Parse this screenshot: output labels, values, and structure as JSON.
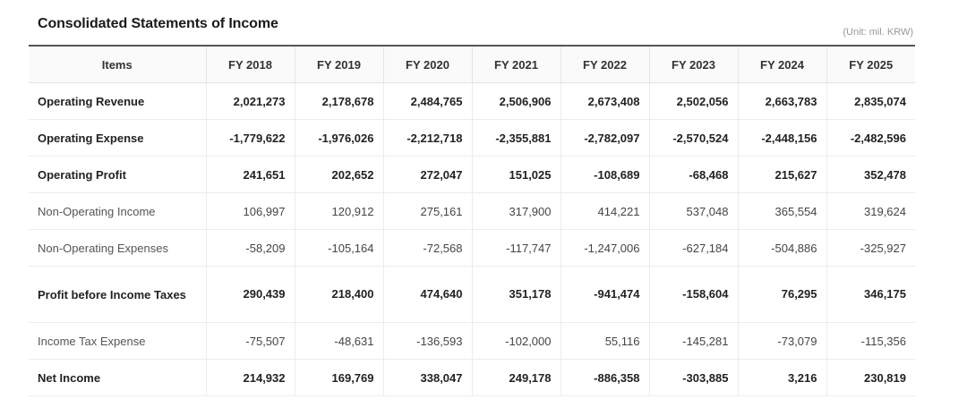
{
  "header": {
    "title": "Consolidated Statements of Income",
    "unit": "(Unit: mil. KRW)"
  },
  "table": {
    "columns": [
      "Items",
      "FY 2018",
      "FY 2019",
      "FY 2020",
      "FY 2021",
      "FY 2022",
      "FY 2023",
      "FY 2024",
      "FY 2025"
    ],
    "rows": [
      {
        "label": "Operating Revenue",
        "bold": true,
        "values": [
          "2,021,273",
          "2,178,678",
          "2,484,765",
          "2,506,906",
          "2,673,408",
          "2,502,056",
          "2,663,783",
          "2,835,074"
        ]
      },
      {
        "label": "Operating Expense",
        "bold": true,
        "values": [
          "-1,779,622",
          "-1,976,026",
          "-2,212,718",
          "-2,355,881",
          "-2,782,097",
          "-2,570,524",
          "-2,448,156",
          "-2,482,596"
        ]
      },
      {
        "label": "Operating Profit",
        "bold": true,
        "values": [
          "241,651",
          "202,652",
          "272,047",
          "151,025",
          "-108,689",
          "-68,468",
          "215,627",
          "352,478"
        ]
      },
      {
        "label": "Non-Operating Income",
        "bold": false,
        "values": [
          "106,997",
          "120,912",
          "275,161",
          "317,900",
          "414,221",
          "537,048",
          "365,554",
          "319,624"
        ]
      },
      {
        "label": "Non-Operating Expenses",
        "bold": false,
        "values": [
          "-58,209",
          "-105,164",
          "-72,568",
          "-117,747",
          "-1,247,006",
          "-627,184",
          "-504,886",
          "-325,927"
        ]
      },
      {
        "label": "Profit before Income Taxes",
        "bold": true,
        "values": [
          "290,439",
          "218,400",
          "474,640",
          "351,178",
          "-941,474",
          "-158,604",
          "76,295",
          "346,175"
        ]
      },
      {
        "label": "Income Tax Expense",
        "bold": false,
        "values": [
          "-75,507",
          "-48,631",
          "-136,593",
          "-102,000",
          "55,116",
          "-145,281",
          "-73,079",
          "-115,356"
        ]
      },
      {
        "label": "Net Income",
        "bold": true,
        "values": [
          "214,932",
          "169,769",
          "338,047",
          "249,178",
          "-886,358",
          "-303,885",
          "3,216",
          "230,819"
        ]
      }
    ]
  }
}
